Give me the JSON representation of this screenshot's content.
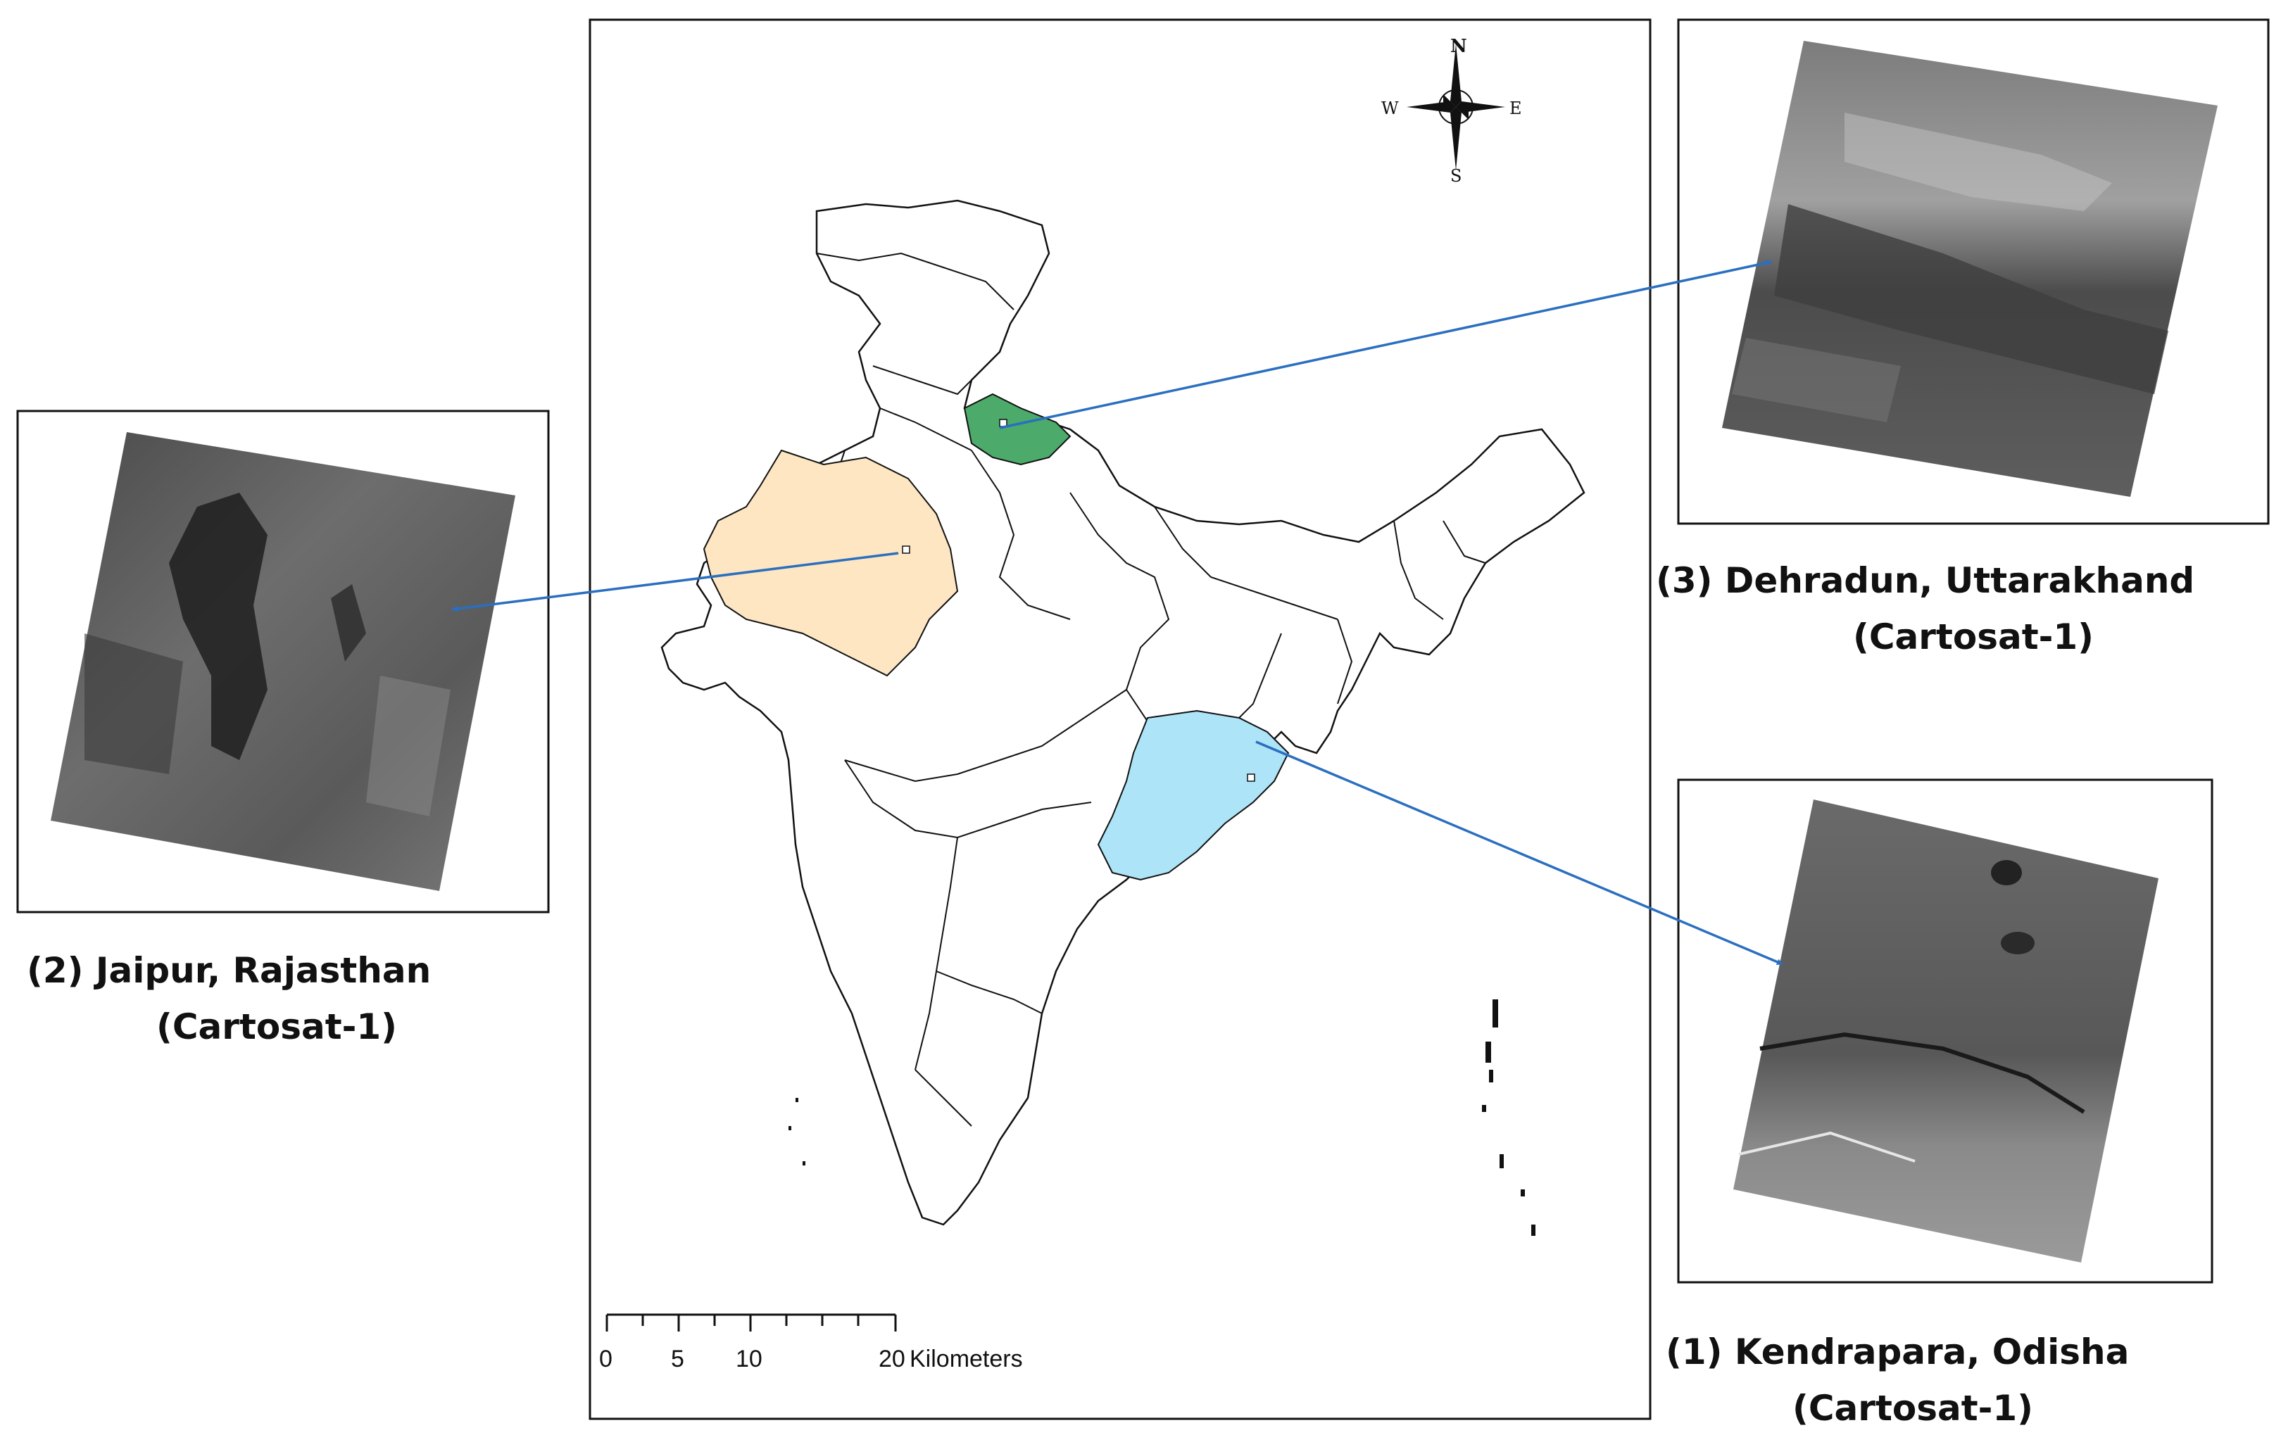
{
  "compass": {
    "north": "N",
    "south": "S",
    "east": "E",
    "west": "W"
  },
  "scale_bar": {
    "ticks": [
      "0",
      "5",
      "10",
      "20"
    ],
    "unit": "Kilometers"
  },
  "sites": [
    {
      "id": "jaipur",
      "title": "(2) Jaipur, Rajasthan",
      "sensor": "(Cartosat-1)",
      "state_color": "#fde6c1"
    },
    {
      "id": "dehradun",
      "title": "(3) Dehradun, Uttarakhand",
      "sensor": "(Cartosat-1)",
      "state_color": "#4caa6a"
    },
    {
      "id": "kendrapara",
      "title": "(1) Kendrapara, Odisha",
      "sensor": "(Cartosat-1)",
      "state_color": "#ade4f7"
    }
  ],
  "colors": {
    "arrow": "#2a6fc0",
    "border": "#111111"
  }
}
